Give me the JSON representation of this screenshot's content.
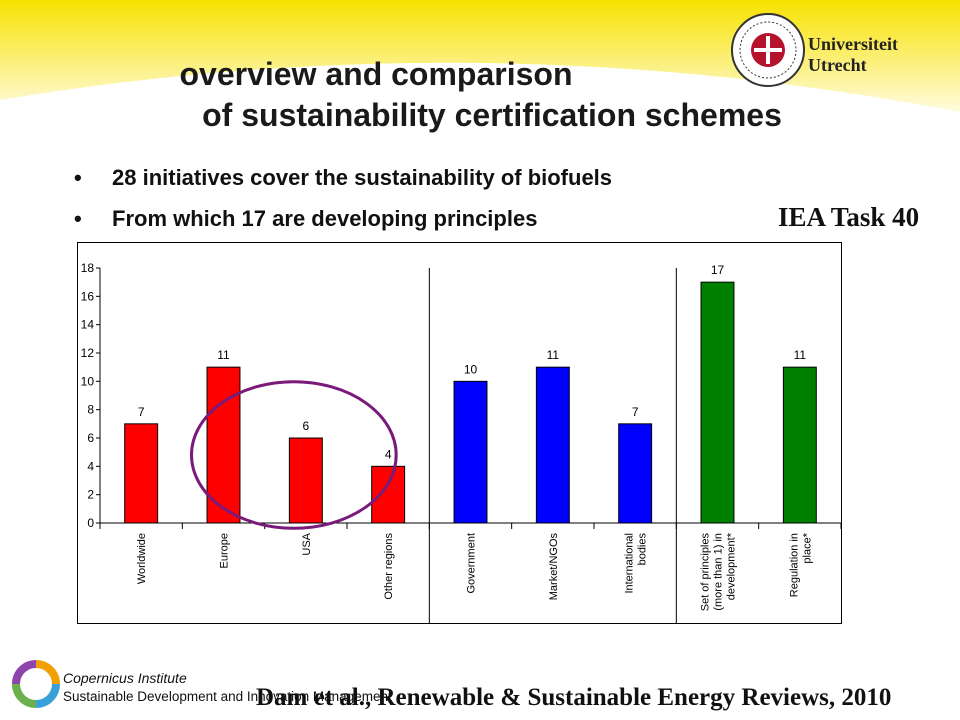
{
  "slide": {
    "title_line1": "overview and comparison",
    "title_line2": "of sustainability certification schemes",
    "bullets": [
      "28 initiatives cover the sustainability of biofuels",
      "From which 17 are developing principles"
    ],
    "bullet_glyph": "•",
    "iea_label": "IEA Task 40",
    "university_name": "Universiteit Utrecht",
    "institute_name": "Copernicus Institute",
    "institute_subtitle": "Sustainable Development and Innovation Management",
    "citation": "Dam et al., Renewable & Sustainable Energy Reviews, 2010"
  },
  "colors": {
    "band_top": "#f7e200",
    "band_fade": "#fffbe0",
    "red": "#ff0000",
    "blue": "#0000ff",
    "green": "#008000",
    "circle": "#7a1a7a"
  },
  "chart_data": {
    "type": "bar",
    "categories": [
      "Worldwide",
      "Europe",
      "USA",
      "Other regions",
      "Government",
      "Market/NGOs",
      "International bodies",
      "Set of principles (more than 1) in development*",
      "Regulation in place*"
    ],
    "category_lines": [
      [
        "Worldwide"
      ],
      [
        "Europe"
      ],
      [
        "USA"
      ],
      [
        "Other regions"
      ],
      [
        "Government"
      ],
      [
        "Market/NGOs"
      ],
      [
        "International",
        "bodies"
      ],
      [
        "Set of principles",
        "(more than 1) in",
        "development*"
      ],
      [
        "Regulation in",
        "place*"
      ]
    ],
    "values": [
      7,
      11,
      6,
      4,
      10,
      11,
      7,
      17,
      11
    ],
    "data_labels": [
      "7",
      "11",
      "6",
      "4",
      "10",
      "11",
      "7",
      "17",
      "11"
    ],
    "colors": [
      "red",
      "red",
      "red",
      "red",
      "blue",
      "blue",
      "blue",
      "green",
      "green"
    ],
    "group_dividers_after": [
      3,
      6
    ],
    "ylim": [
      0,
      18
    ],
    "yticks": [
      0,
      2,
      4,
      6,
      8,
      10,
      12,
      14,
      16,
      18
    ],
    "grid": false,
    "highlight": "circle around USA and Other regions"
  }
}
